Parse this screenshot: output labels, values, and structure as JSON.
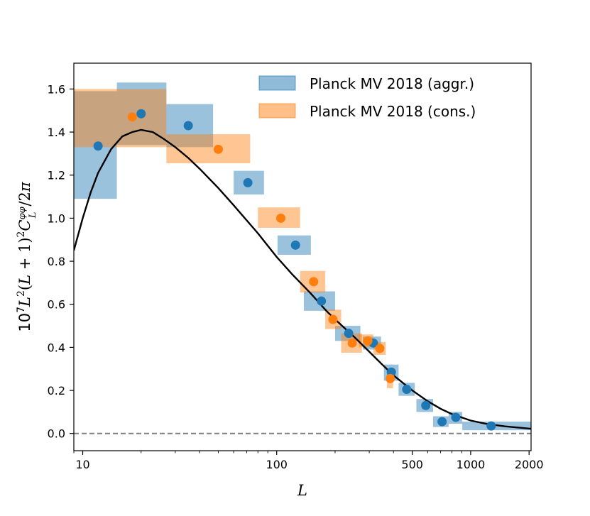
{
  "chart_data": {
    "type": "scatter",
    "x_scale": "log",
    "xlim": [
      9,
      2048
    ],
    "ylim": [
      -0.08,
      1.72
    ],
    "xlabel": "L",
    "ylabel": "10^7 L^2 (L + 1)^2 C_L^{φφ} / 2π",
    "x_ticks": [
      {
        "value": 10,
        "label": "10"
      },
      {
        "value": 100,
        "label": "100"
      },
      {
        "value": 500,
        "label": "500"
      },
      {
        "value": 1000,
        "label": "1000"
      },
      {
        "value": 2000,
        "label": "2000"
      }
    ],
    "y_ticks": [
      {
        "value": 0.0,
        "label": "0.0"
      },
      {
        "value": 0.2,
        "label": "0.2"
      },
      {
        "value": 0.4,
        "label": "0.4"
      },
      {
        "value": 0.6,
        "label": "0.6"
      },
      {
        "value": 0.8,
        "label": "0.8"
      },
      {
        "value": 1.0,
        "label": "1.0"
      },
      {
        "value": 1.2,
        "label": "1.2"
      },
      {
        "value": 1.4,
        "label": "1.4"
      },
      {
        "value": 1.6,
        "label": "1.6"
      }
    ],
    "grid": false,
    "legend_position": "top-right",
    "reference_line": {
      "y": 0.0,
      "style": "dashed",
      "color": "#808080"
    },
    "model_curve": {
      "color": "#000000",
      "points": [
        [
          9,
          0.85
        ],
        [
          10,
          1.0
        ],
        [
          11,
          1.12
        ],
        [
          12,
          1.21
        ],
        [
          14,
          1.32
        ],
        [
          16,
          1.38
        ],
        [
          18,
          1.4
        ],
        [
          20,
          1.41
        ],
        [
          23,
          1.4
        ],
        [
          26,
          1.37
        ],
        [
          30,
          1.33
        ],
        [
          35,
          1.28
        ],
        [
          40,
          1.23
        ],
        [
          50,
          1.14
        ],
        [
          60,
          1.06
        ],
        [
          70,
          0.99
        ],
        [
          80,
          0.93
        ],
        [
          100,
          0.82
        ],
        [
          120,
          0.74
        ],
        [
          150,
          0.65
        ],
        [
          180,
          0.57
        ],
        [
          200,
          0.53
        ],
        [
          250,
          0.45
        ],
        [
          300,
          0.38
        ],
        [
          350,
          0.32
        ],
        [
          400,
          0.27
        ],
        [
          500,
          0.2
        ],
        [
          600,
          0.15
        ],
        [
          700,
          0.115
        ],
        [
          800,
          0.09
        ],
        [
          1000,
          0.06
        ],
        [
          1200,
          0.045
        ],
        [
          1500,
          0.033
        ],
        [
          2048,
          0.022
        ]
      ]
    },
    "series": [
      {
        "name": "Planck MV 2018 (aggr.)",
        "color": "#1f77b4",
        "box_color": "#1f77b4",
        "box_alpha": 0.45,
        "points": [
          {
            "x": 12,
            "y": 1.335,
            "xmin": 8,
            "xmax": 15,
            "ymin": 1.09,
            "ymax": 1.59
          },
          {
            "x": 20,
            "y": 1.485,
            "xmin": 15,
            "xmax": 27,
            "ymin": 1.34,
            "ymax": 1.63
          },
          {
            "x": 35,
            "y": 1.43,
            "xmin": 27,
            "xmax": 47,
            "ymin": 1.33,
            "ymax": 1.53
          },
          {
            "x": 71,
            "y": 1.165,
            "xmin": 60,
            "xmax": 86,
            "ymin": 1.11,
            "ymax": 1.22
          },
          {
            "x": 125,
            "y": 0.875,
            "xmin": 101,
            "xmax": 150,
            "ymin": 0.83,
            "ymax": 0.92
          },
          {
            "x": 170,
            "y": 0.615,
            "xmin": 138,
            "xmax": 200,
            "ymin": 0.57,
            "ymax": 0.66
          },
          {
            "x": 235,
            "y": 0.465,
            "xmin": 200,
            "xmax": 270,
            "ymin": 0.43,
            "ymax": 0.5
          },
          {
            "x": 315,
            "y": 0.42,
            "xmin": 278,
            "xmax": 345,
            "ymin": 0.39,
            "ymax": 0.45
          },
          {
            "x": 390,
            "y": 0.285,
            "xmin": 357,
            "xmax": 425,
            "ymin": 0.245,
            "ymax": 0.32
          },
          {
            "x": 468,
            "y": 0.205,
            "xmin": 425,
            "xmax": 515,
            "ymin": 0.175,
            "ymax": 0.235
          },
          {
            "x": 587,
            "y": 0.13,
            "xmin": 525,
            "xmax": 640,
            "ymin": 0.1,
            "ymax": 0.16
          },
          {
            "x": 712,
            "y": 0.055,
            "xmin": 640,
            "xmax": 770,
            "ymin": 0.03,
            "ymax": 0.08
          },
          {
            "x": 838,
            "y": 0.075,
            "xmin": 770,
            "xmax": 905,
            "ymin": 0.045,
            "ymax": 0.1
          },
          {
            "x": 1275,
            "y": 0.035,
            "xmin": 905,
            "xmax": 2048,
            "ymin": 0.015,
            "ymax": 0.055
          }
        ]
      },
      {
        "name": "Planck MV 2018 (cons.)",
        "color": "#ff7f0e",
        "box_color": "#ff7f0e",
        "box_alpha": 0.45,
        "points": [
          {
            "x": 18,
            "y": 1.47,
            "xmin": 8,
            "xmax": 27,
            "ymin": 1.33,
            "ymax": 1.6
          },
          {
            "x": 50,
            "y": 1.32,
            "xmin": 27,
            "xmax": 73,
            "ymin": 1.255,
            "ymax": 1.39
          },
          {
            "x": 105,
            "y": 1.0,
            "xmin": 80,
            "xmax": 132,
            "ymin": 0.955,
            "ymax": 1.05
          },
          {
            "x": 155,
            "y": 0.705,
            "xmin": 132,
            "xmax": 178,
            "ymin": 0.655,
            "ymax": 0.755
          },
          {
            "x": 195,
            "y": 0.53,
            "xmin": 178,
            "xmax": 215,
            "ymin": 0.485,
            "ymax": 0.575
          },
          {
            "x": 245,
            "y": 0.42,
            "xmin": 215,
            "xmax": 275,
            "ymin": 0.375,
            "ymax": 0.465
          },
          {
            "x": 295,
            "y": 0.43,
            "xmin": 265,
            "xmax": 315,
            "ymin": 0.4,
            "ymax": 0.46
          },
          {
            "x": 340,
            "y": 0.395,
            "xmin": 315,
            "xmax": 365,
            "ymin": 0.365,
            "ymax": 0.425
          },
          {
            "x": 385,
            "y": 0.255,
            "xmin": 370,
            "xmax": 398,
            "ymin": 0.21,
            "ymax": 0.29
          }
        ]
      }
    ]
  }
}
